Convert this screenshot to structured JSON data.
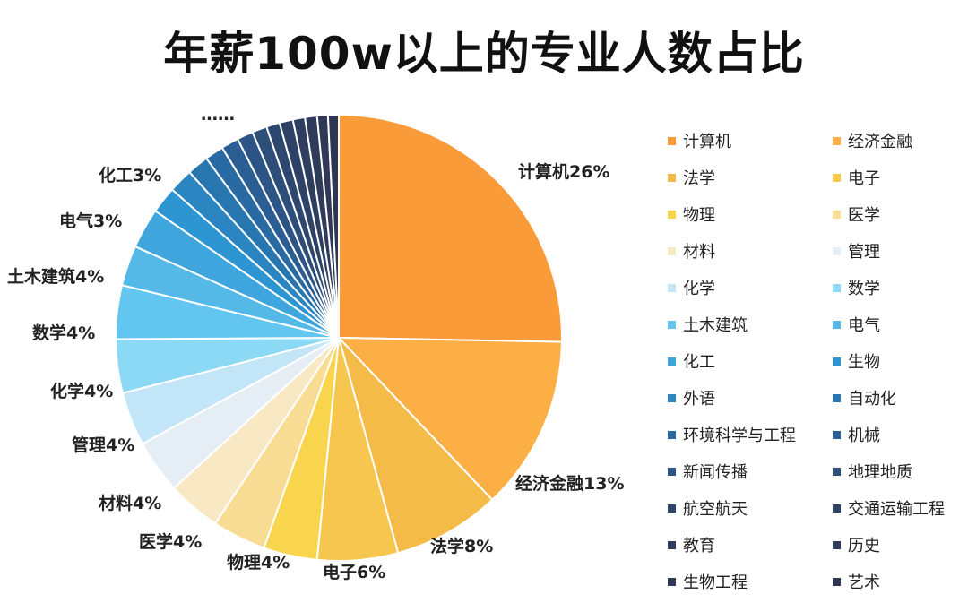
{
  "chart_data": {
    "type": "pie",
    "title": "年薪100w以上的专业人数占比",
    "ellipsis_label": "……",
    "slices": [
      {
        "name": "计算机",
        "value": 26,
        "label": "计算机26%",
        "color": "#F99B38"
      },
      {
        "name": "经济金融",
        "value": 13,
        "label": "经济金融13%",
        "color": "#FBAF45"
      },
      {
        "name": "法学",
        "value": 8,
        "label": "法学8%",
        "color": "#F5BB48"
      },
      {
        "name": "电子",
        "value": 6,
        "label": "电子6%",
        "color": "#F7C64E"
      },
      {
        "name": "物理",
        "value": 4,
        "label": "物理4%",
        "color": "#F9D54E"
      },
      {
        "name": "医学",
        "value": 4,
        "label": "医学4%",
        "color": "#F8DC94"
      },
      {
        "name": "材料",
        "value": 4,
        "label": "材料4%",
        "color": "#F8E8C4"
      },
      {
        "name": "管理",
        "value": 4,
        "label": "管理4%",
        "color": "#E6EEF5"
      },
      {
        "name": "化学",
        "value": 4,
        "label": "化学4%",
        "color": "#C2E6F7"
      },
      {
        "name": "数学",
        "value": 4,
        "label": "数学4%",
        "color": "#8CD9F6"
      },
      {
        "name": "土木建筑",
        "value": 4,
        "label": "土木建筑4%",
        "color": "#62C6F0"
      },
      {
        "name": "电气",
        "value": 3,
        "label": "电气3%",
        "color": "#55B9E8"
      },
      {
        "name": "化工",
        "value": 3,
        "label": "化工3%",
        "color": "#3FA6DD"
      },
      {
        "name": "生物",
        "value": 2,
        "label": "",
        "color": "#2D96D2"
      },
      {
        "name": "外语",
        "value": 1.8,
        "label": "",
        "color": "#2A85C0"
      },
      {
        "name": "自动化",
        "value": 1.6,
        "label": "",
        "color": "#2776B0"
      },
      {
        "name": "环境科学与工程",
        "value": 1.4,
        "label": "",
        "color": "#2A6AA2"
      },
      {
        "name": "机械",
        "value": 1.3,
        "label": "",
        "color": "#2B5E92"
      },
      {
        "name": "新闻传播",
        "value": 1.2,
        "label": "",
        "color": "#2C5585"
      },
      {
        "name": "地理地质",
        "value": 1.1,
        "label": "",
        "color": "#2C4E79"
      },
      {
        "name": "航空航天",
        "value": 1.0,
        "label": "",
        "color": "#2D476E"
      },
      {
        "name": "交通运输工程",
        "value": 1.0,
        "label": "",
        "color": "#2D4265"
      },
      {
        "name": "教育",
        "value": 0.9,
        "label": "",
        "color": "#2E3E5F"
      },
      {
        "name": "历史",
        "value": 0.9,
        "label": "",
        "color": "#2E3B5A"
      },
      {
        "name": "生物工程",
        "value": 0.8,
        "label": "",
        "color": "#2F3856"
      },
      {
        "name": "艺术",
        "value": 0.8,
        "label": "",
        "color": "#2F3652"
      }
    ],
    "legend_placement": "right",
    "legend_columns": 2
  }
}
